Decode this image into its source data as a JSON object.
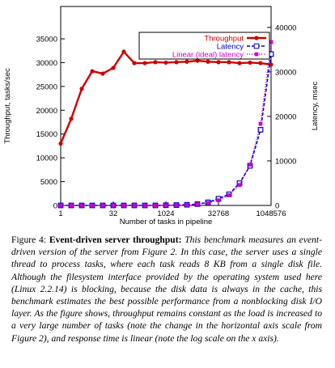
{
  "chart_data": {
    "type": "line",
    "xlabel": "Number of tasks in pipeline",
    "ylabel": "Throughput, tasks/sec",
    "y2label": "Latency, msec",
    "xscale": "log2",
    "x": [
      1,
      2,
      4,
      8,
      16,
      32,
      64,
      128,
      256,
      512,
      1024,
      2048,
      4096,
      8192,
      16384,
      32768,
      65536,
      131072,
      262144,
      524288,
      1048576
    ],
    "xlim": [
      1,
      1048576
    ],
    "xticks": [
      1,
      32,
      1024,
      32768,
      1048576
    ],
    "ylim": [
      0,
      41800
    ],
    "yticks": [
      0,
      5000,
      10000,
      15000,
      20000,
      25000,
      30000,
      35000
    ],
    "y2lim": [
      0,
      44700
    ],
    "y2ticks": [
      0,
      10000,
      20000,
      30000,
      40000
    ],
    "legend": "top-right",
    "series": [
      {
        "name": "Throughput",
        "color": "#cc0000",
        "axis": "y",
        "marker": "circle",
        "dash": "none",
        "values": [
          13000,
          18200,
          24500,
          28200,
          27700,
          28900,
          32300,
          29900,
          29900,
          30100,
          30000,
          30100,
          30200,
          30400,
          30200,
          30100,
          30100,
          29900,
          30000,
          29900,
          29600
        ]
      },
      {
        "name": "Latency",
        "color": "#0000cc",
        "axis": "y2",
        "marker": "square",
        "dash": "4,2",
        "values": [
          0,
          0,
          0,
          0,
          0,
          0,
          0,
          0,
          0,
          0,
          40,
          80,
          150,
          300,
          700,
          1500,
          2500,
          5000,
          8900,
          17000,
          34000
        ]
      },
      {
        "name": "Linear (ideal) latency",
        "color": "#cc00cc",
        "axis": "y2",
        "marker": "small-square",
        "dash": "1,2",
        "values": [
          0,
          0,
          0,
          0,
          0,
          0,
          0,
          0,
          0,
          18,
          36,
          70,
          140,
          290,
          570,
          1150,
          2290,
          4590,
          9175,
          18350,
          36700
        ]
      }
    ]
  },
  "caption": {
    "label": "Figure 4:",
    "title": "Event-driven server throughput:",
    "body": "This benchmark measures an event-driven version of the server from Figure 2. In this case, the server uses a single thread to process tasks, where each task reads 8 KB from a single disk file. Although the filesystem interface provided by the operating system used here (Linux 2.2.14) is blocking, because the disk data is always in the cache, this benchmark estimates the best possible performance from a nonblocking disk I/O layer. As the figure shows, throughput remains constant as the load is increased to a very large number of tasks (note the change in the horizontal axis scale from Figure 2), and response time is linear (note the log scale on the x axis)."
  }
}
